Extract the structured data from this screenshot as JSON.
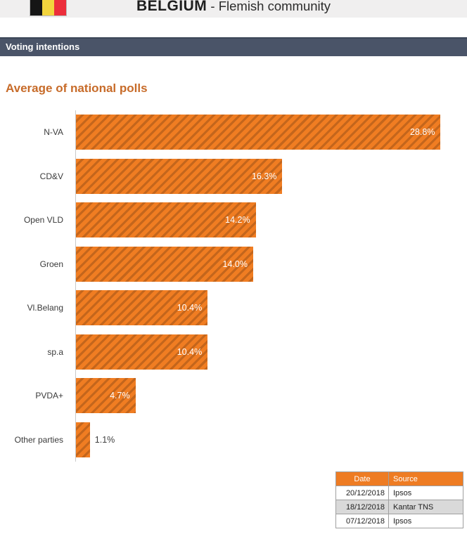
{
  "header": {
    "country": "BELGIUM",
    "subtitle": " - Flemish community",
    "flag": {
      "name": "belgium-flag",
      "colors": [
        "#151515",
        "#f2d43d",
        "#ec2e3b"
      ]
    }
  },
  "section": {
    "label": "Voting intentions"
  },
  "chart_data": {
    "type": "bar",
    "orientation": "horizontal",
    "title": "Average of national polls",
    "categories": [
      "N-VA",
      "CD&V",
      "Open VLD",
      "Groen",
      "Vl.Belang",
      "sp.a",
      "PVDA+",
      "Other parties"
    ],
    "values": [
      28.8,
      16.3,
      14.2,
      14.0,
      10.4,
      10.4,
      4.7,
      1.1
    ],
    "value_labels": [
      "28.8%",
      "16.3%",
      "14.2%",
      "14.0%",
      "10.4%",
      "10.4%",
      "4.7%",
      "1.1%"
    ],
    "xlabel": "",
    "ylabel": "",
    "xlim": [
      0,
      30
    ],
    "grid": false,
    "legend": null,
    "bar_color": "#f07d22",
    "hatch_color": "#c4661c",
    "value_label_color_inside": "#ffffff",
    "value_label_color_outside": "#3f3f3f"
  },
  "sources_table": {
    "headers": [
      "Date",
      "Source"
    ],
    "rows": [
      [
        "20/12/2018",
        "Ipsos"
      ],
      [
        "18/12/2018",
        "Kantar TNS"
      ],
      [
        "07/12/2018",
        "Ipsos"
      ]
    ],
    "header_bg": "#ee7c23",
    "alt_row_bg": "#d9d9d9"
  },
  "colors": {
    "section_bar_bg": "#4a5468",
    "top_strip_bg": "#f0efef",
    "chart_title_color": "#c76b29",
    "axis_line": "#c9c9c9"
  }
}
